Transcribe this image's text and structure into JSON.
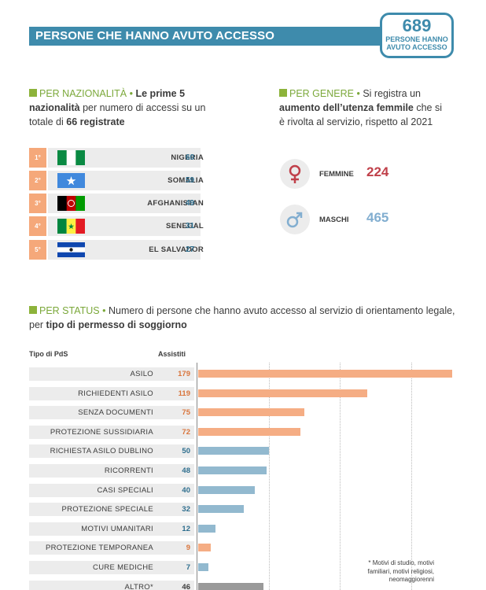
{
  "header": {
    "title": "PERSONE CHE HANNO AVUTO ACCESSO",
    "total_value": "689",
    "total_label": "PERSONE HANNO AVUTO ACCESSO"
  },
  "nationality": {
    "heading": "PER NAZIONALITÀ",
    "text_bold1": "Le prime 5 nazionalità",
    "text_mid": " per numero di accessi su un totale di ",
    "text_bold2": "66 registrate",
    "rows": [
      {
        "rank": "1°",
        "country": "NIGERIA",
        "value": "60",
        "flag": "nigeria-flag-icon"
      },
      {
        "rank": "2°",
        "country": "SOMALIA",
        "value": "59",
        "flag": "somalia-flag-icon"
      },
      {
        "rank": "3°",
        "country": "AFGHANISTAN",
        "value": "49",
        "flag": "afghanistan-flag-icon"
      },
      {
        "rank": "4°",
        "country": "SENEGAL",
        "value": "31",
        "flag": "senegal-flag-icon"
      },
      {
        "rank": "5°",
        "country": "EL SALVADOR",
        "value": "27",
        "flag": "el-salvador-flag-icon"
      }
    ]
  },
  "gender": {
    "heading": "PER GENERE",
    "text_pre": "Si registra un ",
    "text_bold": "aumento dell’utenza femmile",
    "text_post": " che si è rivolta al servizio, rispetto al 2021",
    "female_label": "FEMMINE",
    "female_value": "224",
    "female_icon": "female-symbol-icon",
    "male_label": "MASCHI",
    "male_value": "465",
    "male_icon": "male-symbol-icon",
    "colors": {
      "female": "#c0404a",
      "male": "#82aed0"
    }
  },
  "status": {
    "heading": "PER STATUS",
    "text_pre": "Numero di persone che hanno avuto accesso al servizio di orientamento legale, per ",
    "text_bold": "tipo di permesso di soggiorno",
    "col_type": "Tipo di PdS",
    "col_assisted": "Assistiti",
    "footnote": "* Motivi di studio, motivi familiari, motivi religiosi, neomaggiorenni"
  },
  "chart_data": {
    "type": "bar",
    "orientation": "horizontal",
    "categories": [
      "ASILO",
      "RICHIEDENTI ASILO",
      "SENZA DOCUMENTI",
      "PROTEZIONE SUSSIDIARIA",
      "RICHIESTA ASILO DUBLINO",
      "RICORRENTI",
      "CASI SPECIALI",
      "PROTEZIONE SPECIALE",
      "MOTIVI UMANITARI",
      "PROTEZIONE TEMPORANEA",
      "CURE MEDICHE",
      "ALTRO*"
    ],
    "values": [
      179,
      119,
      75,
      72,
      50,
      48,
      40,
      32,
      12,
      9,
      7,
      46
    ],
    "value_labels": [
      "179",
      "119",
      "75",
      "72",
      "50",
      "48",
      "40",
      "32",
      "12",
      "9",
      "7",
      "46"
    ],
    "bar_colors": [
      "#f5ad84",
      "#f5ad84",
      "#f5ad84",
      "#f5ad84",
      "#92b9cf",
      "#92b9cf",
      "#92b9cf",
      "#92b9cf",
      "#92b9cf",
      "#f5ad84",
      "#92b9cf",
      "#9a9a9a"
    ],
    "label_colors": [
      "#d9753c",
      "#d9753c",
      "#d9753c",
      "#d9753c",
      "#2e6e8e",
      "#2e6e8e",
      "#2e6e8e",
      "#2e6e8e",
      "#2e6e8e",
      "#d9753c",
      "#2e6e8e",
      "#3b3b3b"
    ],
    "xlim": [
      0,
      180
    ],
    "grid": true
  }
}
